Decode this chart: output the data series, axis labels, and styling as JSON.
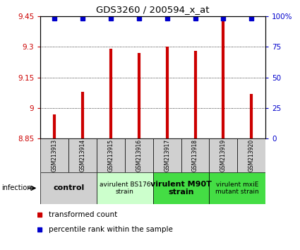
{
  "title": "GDS3260 / 200594_x_at",
  "samples": [
    "GSM213913",
    "GSM213914",
    "GSM213915",
    "GSM213916",
    "GSM213917",
    "GSM213918",
    "GSM213919",
    "GSM213920"
  ],
  "transformed_counts": [
    8.97,
    9.08,
    9.29,
    9.27,
    9.3,
    9.28,
    9.43,
    9.07
  ],
  "percentile_ranks": [
    98,
    98,
    98,
    98,
    98,
    98,
    98,
    98
  ],
  "bar_color": "#cc0000",
  "dot_color": "#0000cc",
  "ylim_left": [
    8.85,
    9.45
  ],
  "ylim_right": [
    0,
    100
  ],
  "yticks_left": [
    8.85,
    9.0,
    9.15,
    9.3,
    9.45
  ],
  "ytick_labels_left": [
    "8.85",
    "9",
    "9.15",
    "9.3",
    "9.45"
  ],
  "yticks_right": [
    0,
    25,
    50,
    75,
    100
  ],
  "ytick_labels_right": [
    "0",
    "25",
    "50",
    "75",
    "100%"
  ],
  "grid_values": [
    9.0,
    9.15,
    9.3
  ],
  "groups": [
    {
      "label": "control",
      "start": 0,
      "end": 2,
      "color": "#d0d0d0",
      "fontsize": 8,
      "bold": true
    },
    {
      "label": "avirulent BS176\nstrain",
      "start": 2,
      "end": 4,
      "color": "#ccffcc",
      "fontsize": 6.5,
      "bold": false
    },
    {
      "label": "virulent M90T\nstrain",
      "start": 4,
      "end": 6,
      "color": "#44dd44",
      "fontsize": 8,
      "bold": true
    },
    {
      "label": "virulent mxiE\nmutant strain",
      "start": 6,
      "end": 8,
      "color": "#44dd44",
      "fontsize": 6.5,
      "bold": false
    }
  ],
  "infection_label": "infection",
  "legend_red_label": "transformed count",
  "legend_blue_label": "percentile rank within the sample",
  "sample_box_color": "#d0d0d0"
}
